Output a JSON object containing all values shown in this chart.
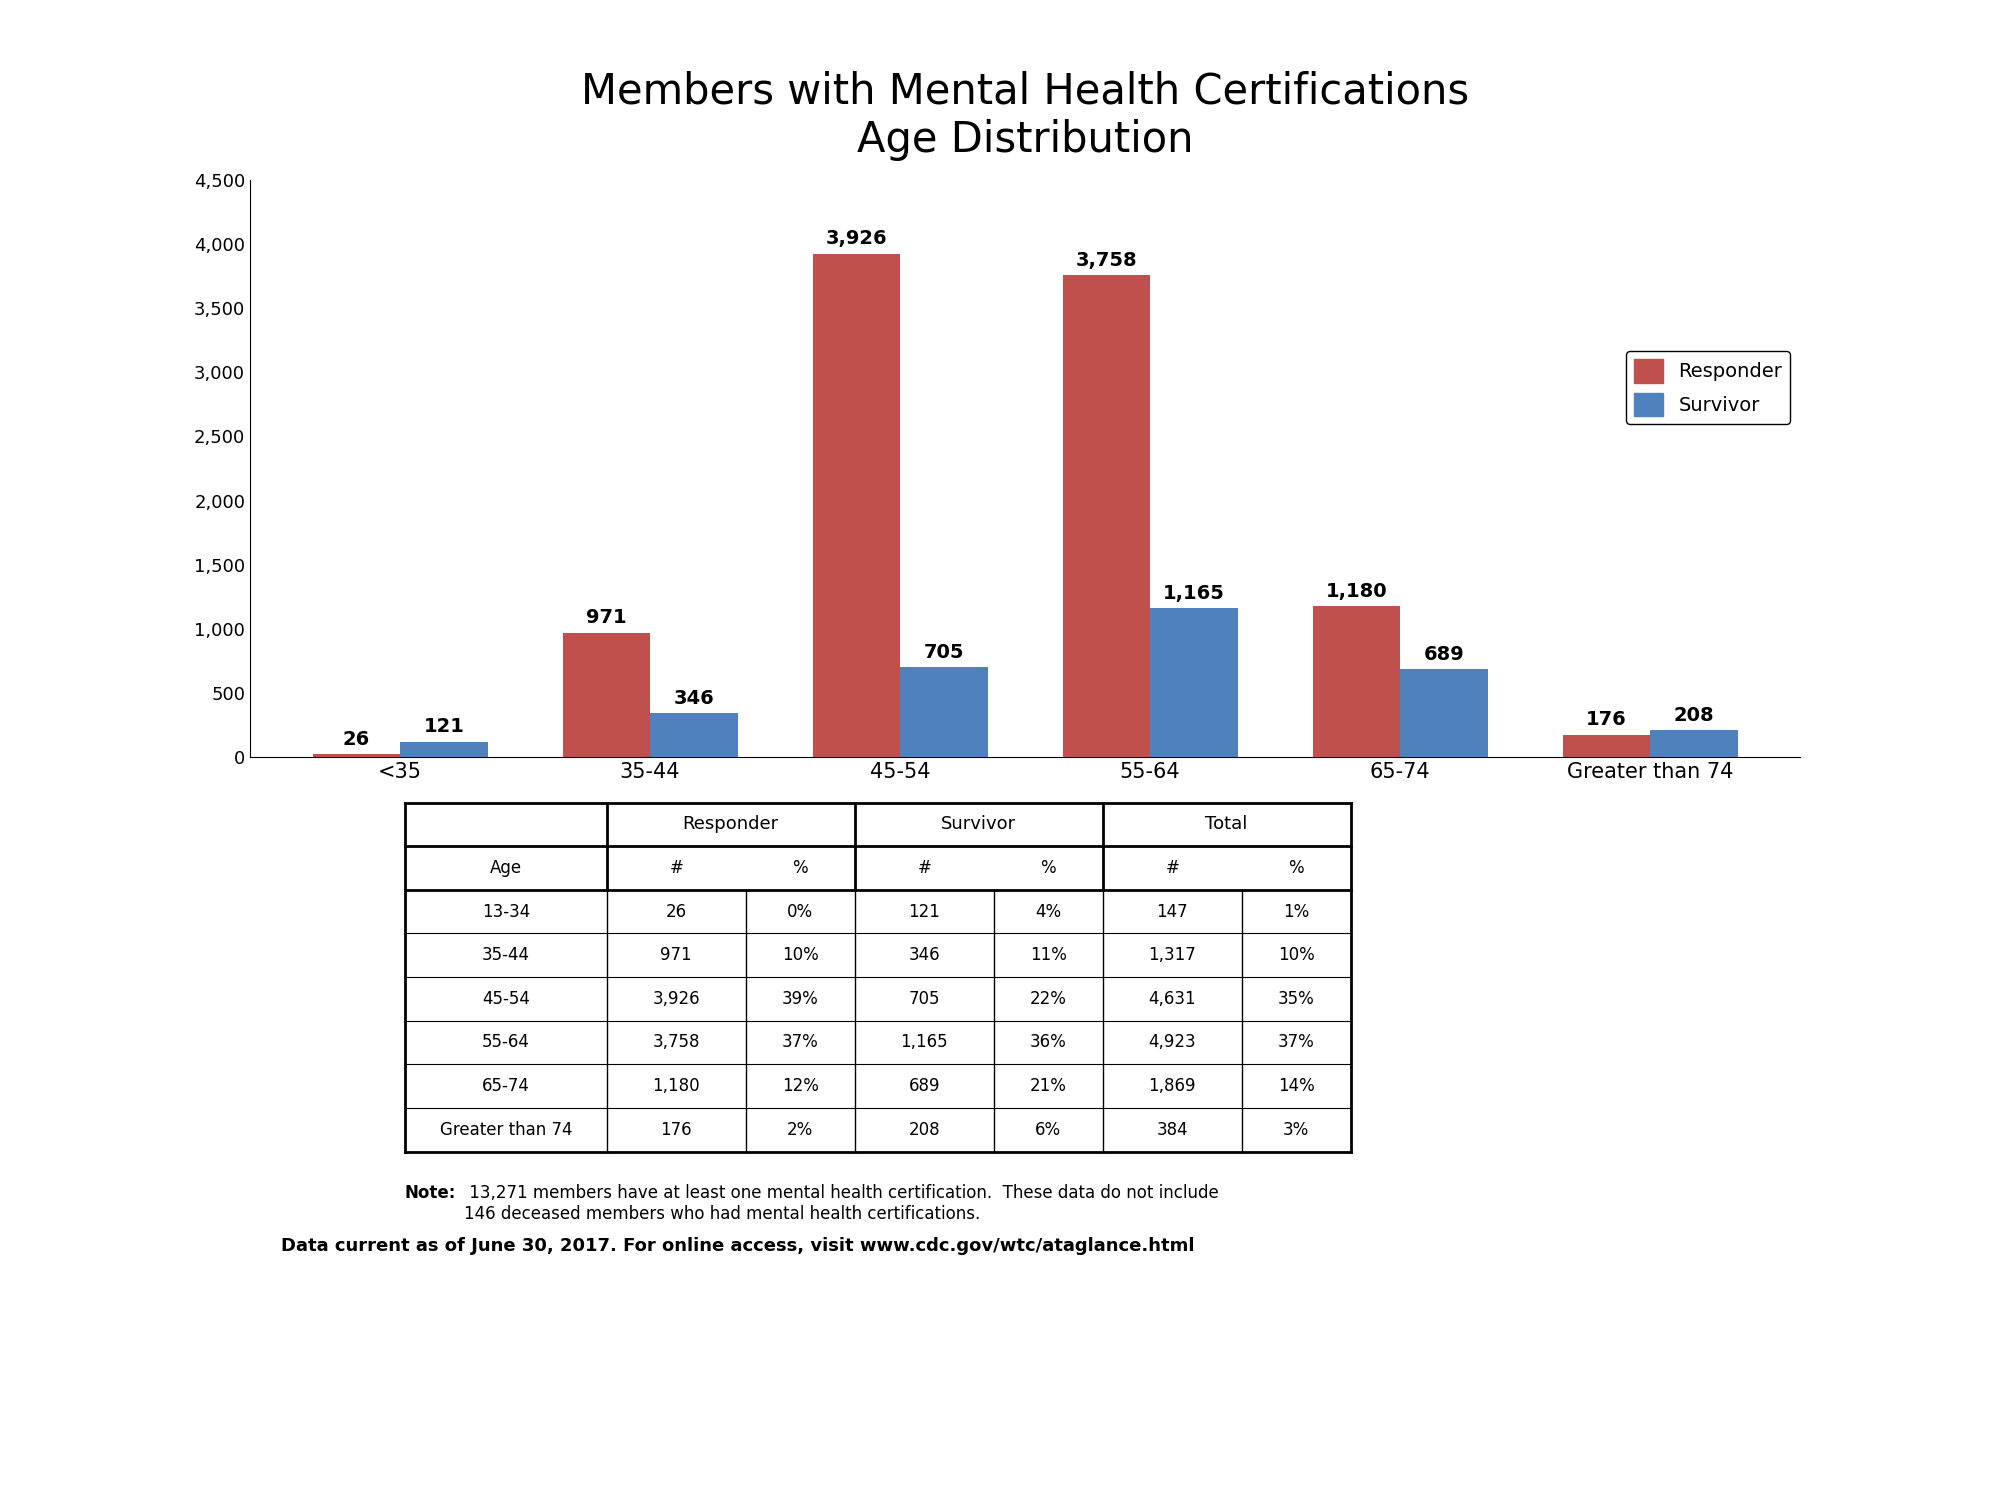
{
  "title": "Members with Mental Health Certifications\nAge Distribution",
  "categories": [
    "<35",
    "35-44",
    "45-54",
    "55-64",
    "65-74",
    "Greater than 74"
  ],
  "responder_values": [
    26,
    971,
    3926,
    3758,
    1180,
    176
  ],
  "survivor_values": [
    121,
    346,
    705,
    1165,
    689,
    208
  ],
  "responder_color": "#C0504D",
  "survivor_color": "#4F81BD",
  "ylim": [
    0,
    4500
  ],
  "yticks": [
    0,
    500,
    1000,
    1500,
    2000,
    2500,
    3000,
    3500,
    4000,
    4500
  ],
  "ytick_labels": [
    "0",
    "500",
    "1,000",
    "1,500",
    "2,000",
    "2,500",
    "3,000",
    "3,500",
    "4,000",
    "4,500"
  ],
  "background_color": "#FFFFFF",
  "table_data": {
    "ages": [
      "13-34",
      "35-44",
      "45-54",
      "55-64",
      "65-74",
      "Greater than 74"
    ],
    "responder_n": [
      "26",
      "971",
      "3,926",
      "3,758",
      "1,180",
      "176"
    ],
    "responder_pct": [
      "0%",
      "10%",
      "39%",
      "37%",
      "12%",
      "2%"
    ],
    "survivor_n": [
      "121",
      "346",
      "705",
      "1,165",
      "689",
      "208"
    ],
    "survivor_pct": [
      "4%",
      "11%",
      "22%",
      "36%",
      "21%",
      "6%"
    ],
    "total_n": [
      "147",
      "1,317",
      "4,631",
      "4,923",
      "1,869",
      "384"
    ],
    "total_pct": [
      "1%",
      "10%",
      "35%",
      "37%",
      "14%",
      "3%"
    ]
  },
  "note_bold": "Note:",
  "note_text": " 13,271 members have at least one mental health certification.  These data do not include\n146 deceased members who had mental health certifications.",
  "footer_text": "Data current as of June 30, 2017. For online access, visit www.cdc.gov/wtc/ataglance.html"
}
